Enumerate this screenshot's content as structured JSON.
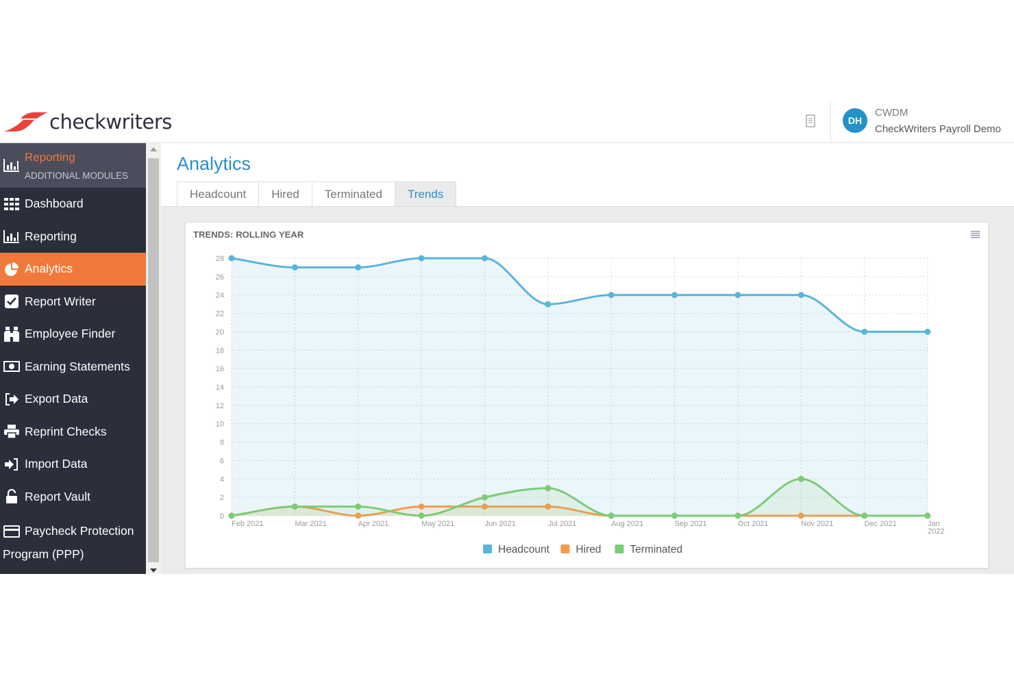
{
  "header": {
    "logo_text": "checkwriters",
    "account_code": "CWDM",
    "account_name": "CheckWriters Payroll Demo",
    "avatar_initials": "DH"
  },
  "sidebar": {
    "module_title": "Reporting",
    "module_subtitle": "ADDITIONAL MODULES",
    "items": [
      {
        "label": "Dashboard",
        "icon": "grid-icon"
      },
      {
        "label": "Reporting",
        "icon": "bar-chart-icon"
      },
      {
        "label": "Analytics",
        "icon": "pie-chart-icon",
        "active": true
      },
      {
        "label": "Report Writer",
        "icon": "checkbox-icon"
      },
      {
        "label": "Employee Finder",
        "icon": "binoculars-icon"
      },
      {
        "label": "Earning Statements",
        "icon": "money-icon"
      },
      {
        "label": "Export Data",
        "icon": "export-icon"
      },
      {
        "label": "Reprint Checks",
        "icon": "printer-icon"
      },
      {
        "label": "Import Data",
        "icon": "import-icon"
      },
      {
        "label": "Report Vault",
        "icon": "unlock-icon"
      }
    ],
    "ppp_line1": "Paycheck Protection",
    "ppp_line2": "Program (PPP)"
  },
  "page": {
    "title": "Analytics",
    "tabs": [
      {
        "label": "Headcount",
        "active": false
      },
      {
        "label": "Hired",
        "active": false
      },
      {
        "label": "Terminated",
        "active": false
      },
      {
        "label": "Trends",
        "active": true
      }
    ]
  },
  "chart_data": {
    "type": "area",
    "title": "TRENDS: ROLLING YEAR",
    "categories": [
      "Feb 2021",
      "Mar 2021",
      "Apr 2021",
      "May 2021",
      "Jun 2021",
      "Jul 2021",
      "Aug 2021",
      "Sep 2021",
      "Oct 2021",
      "Nov 2021",
      "Dec 2021",
      "Jan 2022"
    ],
    "series": [
      {
        "name": "Headcount",
        "color": "#5ab4d9",
        "values": [
          28,
          27,
          27,
          28,
          28,
          23,
          24,
          24,
          24,
          24,
          20,
          20
        ]
      },
      {
        "name": "Hired",
        "color": "#f29b4e",
        "values": [
          0,
          1,
          0,
          1,
          1,
          1,
          0,
          0,
          0,
          0,
          0,
          0
        ]
      },
      {
        "name": "Terminated",
        "color": "#7ccb77",
        "values": [
          0,
          1,
          1,
          0,
          2,
          3,
          0,
          0,
          0,
          4,
          0,
          0
        ]
      }
    ],
    "ylim": [
      0,
      28
    ],
    "yticks": [
      0,
      2,
      4,
      6,
      8,
      10,
      12,
      14,
      16,
      18,
      20,
      22,
      24,
      26,
      28
    ],
    "grid": true,
    "legend": "bottom"
  }
}
